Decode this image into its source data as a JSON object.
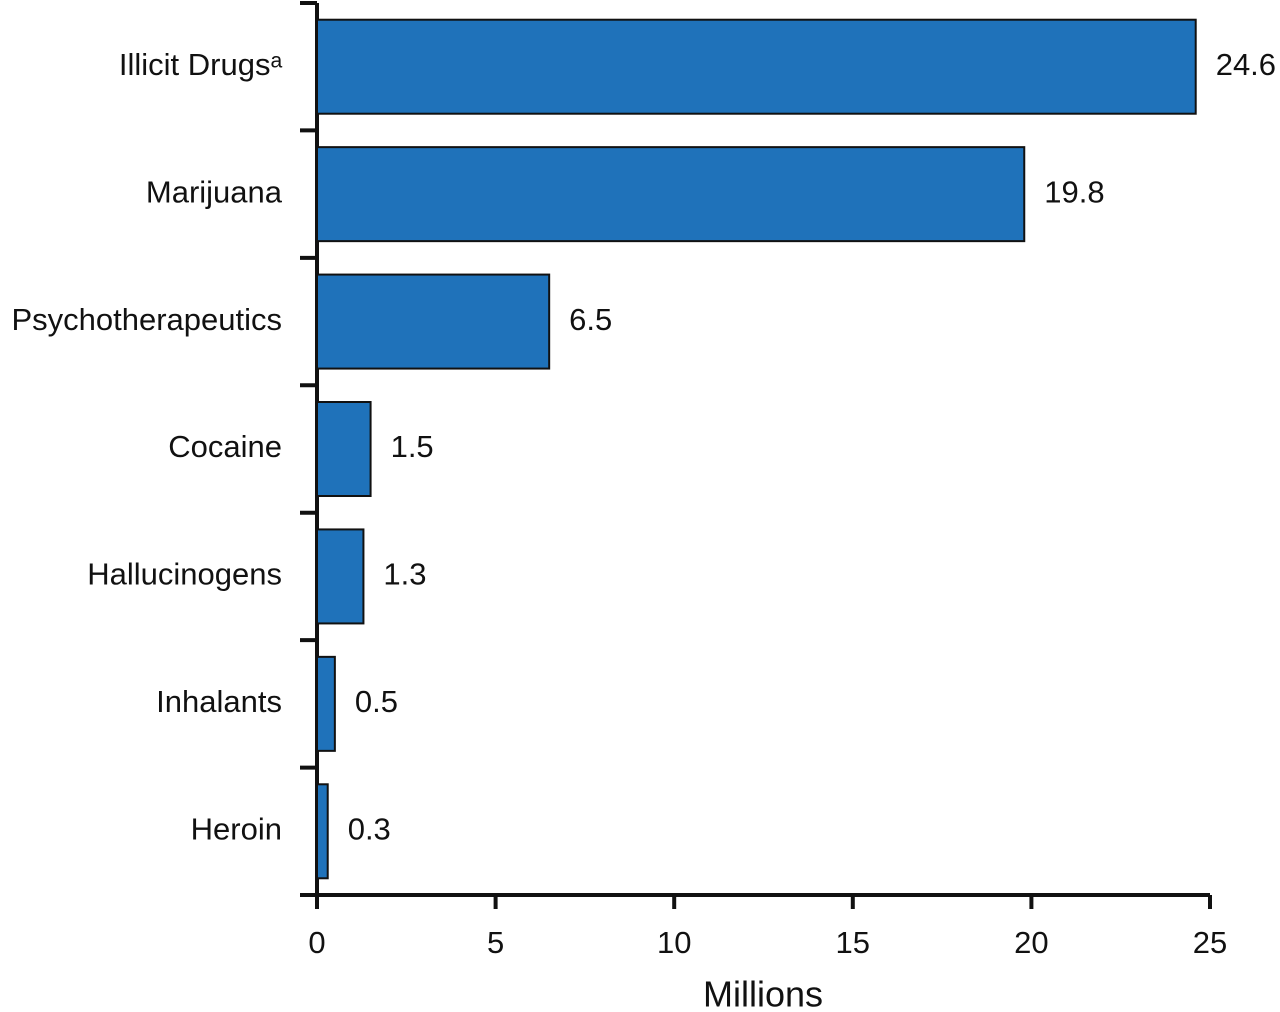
{
  "chart_data": {
    "type": "bar",
    "orientation": "horizontal",
    "categories": [
      "Illicit Drugsᵃ",
      "Marijuana",
      "Psychotherapeutics",
      "Cocaine",
      "Hallucinogens",
      "Inhalants",
      "Heroin"
    ],
    "values": [
      24.6,
      19.8,
      6.5,
      1.5,
      1.3,
      0.5,
      0.3
    ],
    "color": "#1f72ba",
    "xlabel": "Millions",
    "xlim": [
      0,
      25
    ],
    "xticks": [
      0,
      5,
      10,
      15,
      20,
      25
    ]
  }
}
